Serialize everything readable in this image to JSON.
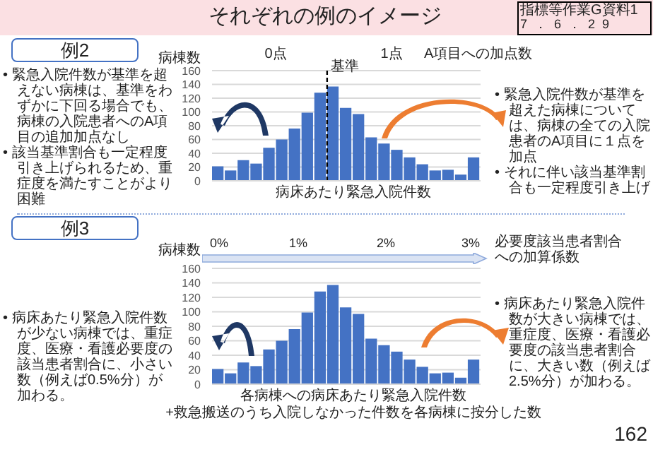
{
  "chart_data": [
    {
      "type": "bar",
      "title": "例2",
      "ylabel": "病棟数",
      "xlabel": "病床あたり緊急入院件数",
      "categories": [
        null,
        null,
        null,
        null,
        null,
        null,
        null,
        null,
        null,
        null,
        null,
        null,
        null,
        null,
        null,
        null,
        null,
        null,
        null,
        null,
        null
      ],
      "values": [
        21,
        15,
        30,
        25,
        48,
        60,
        76,
        99,
        128,
        137,
        106,
        97,
        63,
        54,
        45,
        34,
        24,
        15,
        16,
        9,
        34
      ],
      "color": "#4472c4",
      "ylim": [
        0,
        160
      ],
      "yticks": [
        0,
        20,
        40,
        60,
        80,
        100,
        120,
        140,
        160
      ],
      "grid": "y",
      "annotations": [
        "それぞれの例のイメージ",
        "指標等作業G資料1",
        "7．6．29",
        "0点",
        "1点",
        "A項目への加点数",
        "• 緊急入院件数が基準を超えない病棟は、基準をわずかに下回る場合でも、病棟の入院患者へのA項目の追加加点なし",
        "• 該当基準割合も一定程度引き上げられるため、重症度を満たすことがより困難",
        "• 緊急入院件数が基準を超えた病棟については、病棟の全ての入院患者のA項目に１点を加点",
        "• それに伴い該当基準割合も一定程度引き上げ",
        "基準"
      ]
    },
    {
      "type": "bar",
      "title": "例3",
      "ylabel": "病棟数",
      "xlabel": "各病棟への病床あたり緊急入院件数\n+救急搬送のうち入院しなかった件数を各病棟に按分した数",
      "categories": [
        null,
        null,
        null,
        null,
        null,
        null,
        null,
        null,
        null,
        null,
        null,
        null,
        null,
        null,
        null,
        null,
        null,
        null,
        null,
        null,
        null
      ],
      "values": [
        21,
        15,
        30,
        25,
        48,
        60,
        76,
        99,
        128,
        137,
        106,
        97,
        63,
        54,
        45,
        34,
        24,
        15,
        16,
        9,
        34
      ],
      "color": "#4472c4",
      "ylim": [
        0,
        160
      ],
      "yticks": [
        0,
        20,
        40,
        60,
        80,
        100,
        120,
        140,
        160
      ],
      "grid": "y",
      "annotations": [
        "0%",
        "1%",
        "2%",
        "3%",
        "必要度該当患者割合への加算係数",
        "• 病床あたり緊急入院件数が少ない病棟では、重症度、医療・看護必要度の該当患者割合に、小さい数（例えば0.5%分）が加わる。",
        "• 病床あたり緊急入院件数が大きい病棟では、重症度、医療・看護必要度の該当患者割合に、大きい数（例えば2.5%分）が加わる。",
        "162"
      ]
    }
  ]
}
